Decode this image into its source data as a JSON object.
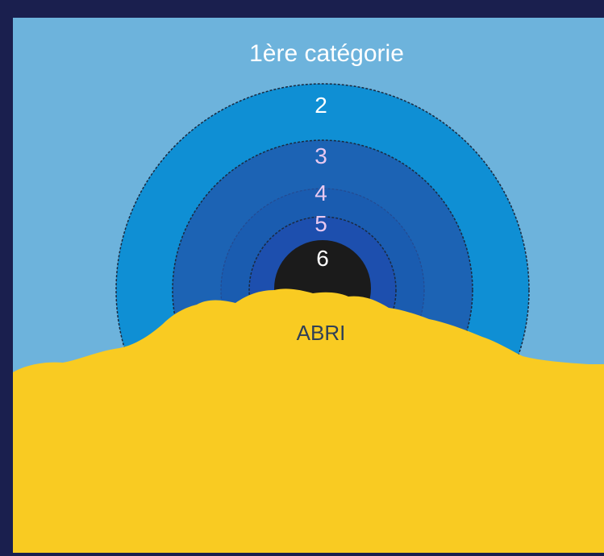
{
  "diagram": {
    "title": "1ère catégorie",
    "shelter_label": "ABRI",
    "zones": [
      {
        "label": "2",
        "label_color": "#ffffff"
      },
      {
        "label": "3",
        "label_color": "#e8c8f0"
      },
      {
        "label": "4",
        "label_color": "#e8c8f0"
      },
      {
        "label": "5",
        "label_color": "#e8c8f0"
      },
      {
        "label": "6",
        "label_color": "#ffffff"
      }
    ],
    "colors": {
      "frame": "#1a1f4e",
      "sky": "#6db3dc",
      "zone_2": "#0f8fd4",
      "zone_3": "#1c63b4",
      "zone_4": "#1a5cb0",
      "zone_5": "#1d4fae",
      "zone_6": "#1b1b1b",
      "ground": "#f9cb22",
      "title_text": "#ffffff",
      "shelter_text": "#2f3f56"
    }
  }
}
